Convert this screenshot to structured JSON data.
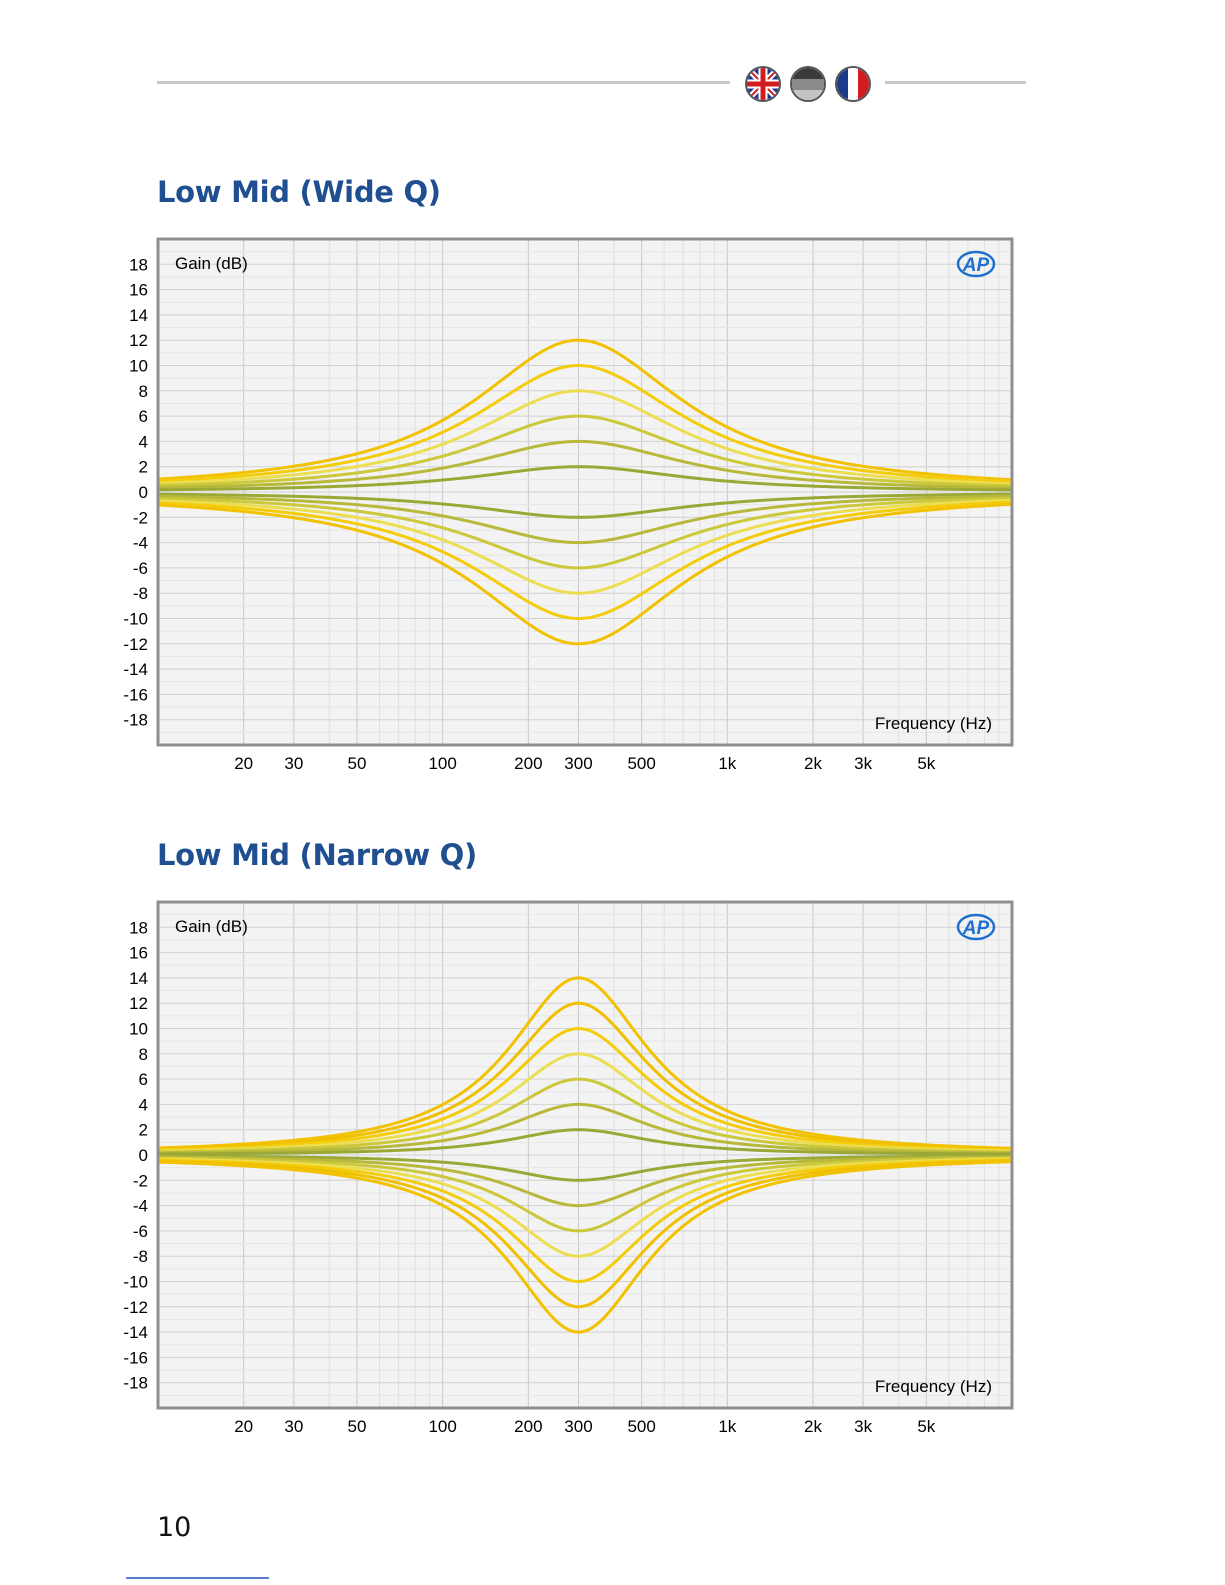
{
  "header": {
    "flags": [
      {
        "name": "uk-flag-icon",
        "colors": [
          "#1f3a8a",
          "#ffffff",
          "#d01c1f"
        ]
      },
      {
        "name": "german-flag-icon",
        "colors": [
          "#333333",
          "#888888",
          "#bbbbbb"
        ]
      },
      {
        "name": "french-flag-icon",
        "colors": [
          "#1f3a8a",
          "#ffffff",
          "#d01c1f"
        ]
      }
    ]
  },
  "sections": [
    {
      "title": "Low Mid (Wide Q)"
    },
    {
      "title": "Low Mid (Narrow Q)"
    }
  ],
  "page_number": "10",
  "chart_data": [
    {
      "type": "line",
      "title": "Low Mid (Wide Q)",
      "ylabel": "Gain (dB)",
      "xlabel": "Frequency (Hz)",
      "logo": "AP",
      "x_scale": "log",
      "xlim": [
        10,
        10000
      ],
      "ylim": [
        -20,
        20
      ],
      "x_ticks": [
        20,
        30,
        50,
        100,
        200,
        300,
        500,
        1000,
        2000,
        3000,
        5000
      ],
      "x_tick_labels": [
        "20",
        "30",
        "50",
        "100",
        "200",
        "300",
        "500",
        "1k",
        "2k",
        "3k",
        "5k"
      ],
      "y_ticks": [
        18,
        16,
        14,
        12,
        10,
        8,
        6,
        4,
        2,
        0,
        -2,
        -4,
        -6,
        -8,
        -10,
        -12,
        -14,
        -16,
        -18
      ],
      "y_tick_labels": [
        "18",
        "16",
        "14",
        "12",
        "10",
        "8",
        "6",
        "4",
        "2",
        "0",
        "-2",
        "-4",
        "-6",
        "-8",
        "-10",
        "-12",
        "-14",
        "-16",
        "-18"
      ],
      "grid": true,
      "center_frequency": 300,
      "bandwidth_octaves": 3.0,
      "series": [
        {
          "peak_gain": 12,
          "color": "#f2c200"
        },
        {
          "peak_gain": 10,
          "color": "#f4cc0a"
        },
        {
          "peak_gain": 8,
          "color": "#ecde50"
        },
        {
          "peak_gain": 6,
          "color": "#cbc83a"
        },
        {
          "peak_gain": 4,
          "color": "#b8b83a"
        },
        {
          "peak_gain": 2,
          "color": "#9aa836"
        },
        {
          "peak_gain": -2,
          "color": "#9aa836"
        },
        {
          "peak_gain": -4,
          "color": "#b8b83a"
        },
        {
          "peak_gain": -6,
          "color": "#cbc83a"
        },
        {
          "peak_gain": -8,
          "color": "#ecde50"
        },
        {
          "peak_gain": -10,
          "color": "#f4cc0a"
        },
        {
          "peak_gain": -12,
          "color": "#f2c200"
        }
      ]
    },
    {
      "type": "line",
      "title": "Low Mid (Narrow Q)",
      "ylabel": "Gain (dB)",
      "xlabel": "Frequency (Hz)",
      "logo": "AP",
      "x_scale": "log",
      "xlim": [
        10,
        10000
      ],
      "ylim": [
        -20,
        20
      ],
      "x_ticks": [
        20,
        30,
        50,
        100,
        200,
        300,
        500,
        1000,
        2000,
        3000,
        5000
      ],
      "x_tick_labels": [
        "20",
        "30",
        "50",
        "100",
        "200",
        "300",
        "500",
        "1k",
        "2k",
        "3k",
        "5k"
      ],
      "y_ticks": [
        18,
        16,
        14,
        12,
        10,
        8,
        6,
        4,
        2,
        0,
        -2,
        -4,
        -6,
        -8,
        -10,
        -12,
        -14,
        -16,
        -18
      ],
      "y_tick_labels": [
        "18",
        "16",
        "14",
        "12",
        "10",
        "8",
        "6",
        "4",
        "2",
        "0",
        "-2",
        "-4",
        "-6",
        "-8",
        "-10",
        "-12",
        "-14",
        "-16",
        "-18"
      ],
      "grid": true,
      "center_frequency": 300,
      "bandwidth_octaves": 2.0,
      "series": [
        {
          "peak_gain": 14,
          "color": "#f2c200"
        },
        {
          "peak_gain": 12,
          "color": "#f0c000"
        },
        {
          "peak_gain": 10,
          "color": "#f4cc0a"
        },
        {
          "peak_gain": 8,
          "color": "#ecde50"
        },
        {
          "peak_gain": 6,
          "color": "#cbc83a"
        },
        {
          "peak_gain": 4,
          "color": "#b8b83a"
        },
        {
          "peak_gain": 2,
          "color": "#9aa836"
        },
        {
          "peak_gain": -2,
          "color": "#9aa836"
        },
        {
          "peak_gain": -4,
          "color": "#b8b83a"
        },
        {
          "peak_gain": -6,
          "color": "#cbc83a"
        },
        {
          "peak_gain": -8,
          "color": "#ecde50"
        },
        {
          "peak_gain": -10,
          "color": "#f4cc0a"
        },
        {
          "peak_gain": -12,
          "color": "#f0c000"
        },
        {
          "peak_gain": -14,
          "color": "#f2c200"
        }
      ]
    }
  ]
}
